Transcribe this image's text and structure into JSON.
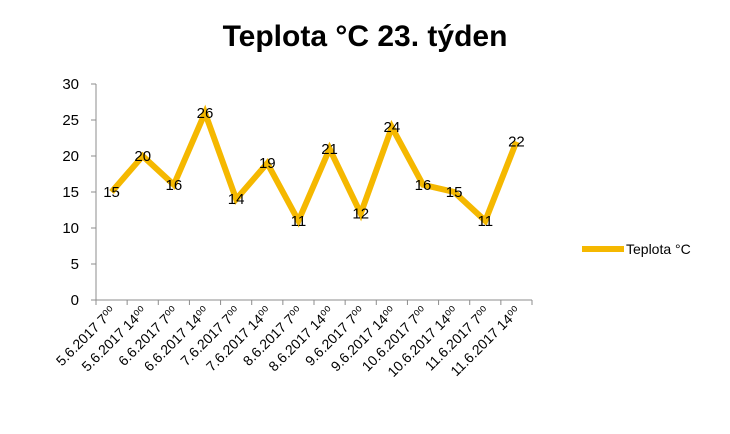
{
  "chart_data": {
    "type": "line",
    "title": "Teplota °C 23. týden",
    "xlabel": "",
    "ylabel": "",
    "ylim": [
      0,
      30
    ],
    "yticks": [
      0,
      5,
      10,
      15,
      20,
      25,
      30
    ],
    "grid": false,
    "legend_position": "right",
    "categories": [
      "5.6.2017 7⁰⁰",
      "5.6.2017 14⁰⁰",
      "6.6.2017 7⁰⁰",
      "6.6.2017 14⁰⁰",
      "7.6.2017 7⁰⁰",
      "7.6.2017 14⁰⁰",
      "8.6.2017 7⁰⁰",
      "8.6.2017 14⁰⁰",
      "9.6.2017 7⁰⁰",
      "9.6.2017 14⁰⁰",
      "10.6.2017 7⁰⁰",
      "10.6.2017 14⁰⁰",
      "11.6.2017 7⁰⁰",
      "11.6.2017 14⁰⁰"
    ],
    "series": [
      {
        "name": "Teplota °C",
        "color": "#f5b800",
        "values": [
          15,
          20,
          16,
          26,
          14,
          19,
          11,
          21,
          12,
          24,
          16,
          15,
          11,
          22
        ]
      }
    ]
  }
}
